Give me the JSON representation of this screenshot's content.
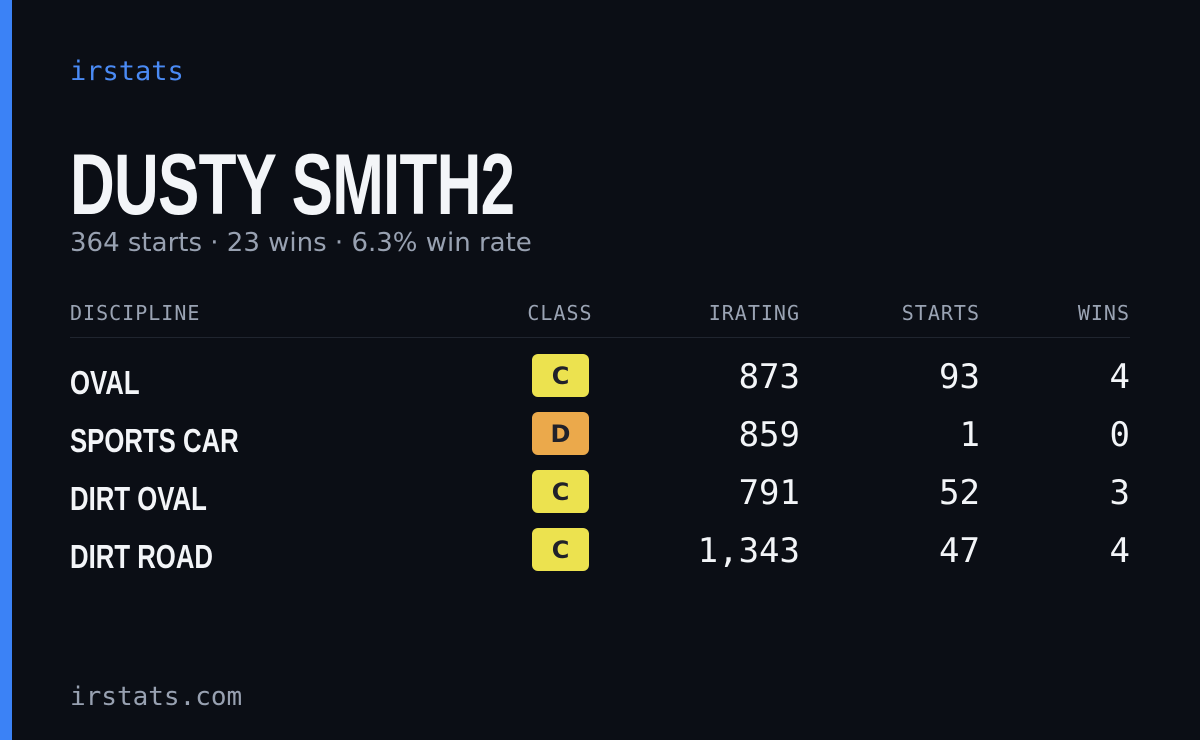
{
  "brand": "irstats",
  "profile": {
    "name": "DUSTY SMITH2",
    "summary": "364 starts · 23 wins · 6.3% win rate"
  },
  "table": {
    "headers": [
      "DISCIPLINE",
      "CLASS",
      "IRATING",
      "STARTS",
      "WINS"
    ],
    "rows": [
      {
        "discipline": "OVAL",
        "class": "C",
        "class_color": "#ece24f",
        "irating": "873",
        "starts": "93",
        "wins": "4"
      },
      {
        "discipline": "SPORTS CAR",
        "class": "D",
        "class_color": "#eba94b",
        "irating": "859",
        "starts": "1",
        "wins": "0"
      },
      {
        "discipline": "DIRT OVAL",
        "class": "C",
        "class_color": "#ece24f",
        "irating": "791",
        "starts": "52",
        "wins": "3"
      },
      {
        "discipline": "DIRT ROAD",
        "class": "C",
        "class_color": "#ece24f",
        "irating": "1,343",
        "starts": "47",
        "wins": "4"
      }
    ]
  },
  "footer": "irstats.com"
}
